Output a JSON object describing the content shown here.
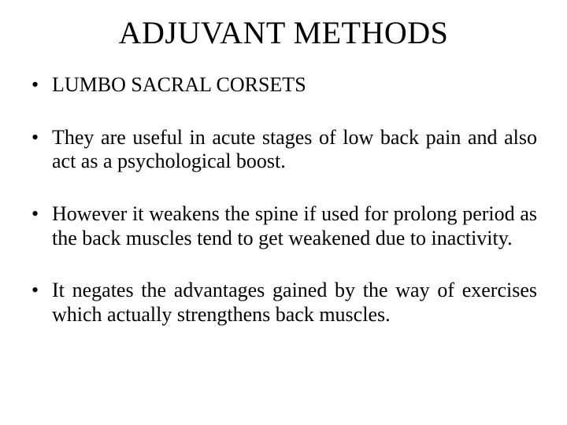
{
  "title": "ADJUVANT METHODS",
  "bullets": [
    "LUMBO SACRAL CORSETS",
    "They are useful in acute stages of low back pain and also act as a psychological boost.",
    "However it weakens the spine if used for prolong period as the back muscles tend to get weakened due to inactivity.",
    "It negates the advantages gained by the way of exercises which actually strengthens back muscles."
  ],
  "colors": {
    "background": "#ffffff",
    "text": "#000000"
  },
  "typography": {
    "title_fontsize": 40,
    "body_fontsize": 26,
    "font_family": "Times New Roman"
  }
}
